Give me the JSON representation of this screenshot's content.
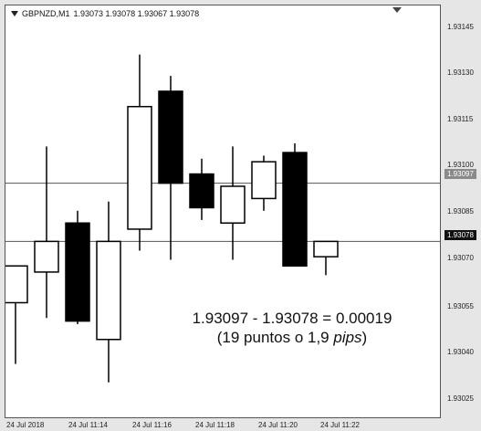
{
  "header": {
    "symbol": "GBPNZD,M1",
    "ohlc": "1.93073 1.93078 1.93067 1.93078",
    "collapse_icon": "triangle-down-icon",
    "shift_icon": "chart-shift-triangle-icon"
  },
  "annotation": {
    "line1": "1.93097 - 1.93078 = 0.00019",
    "line2_prefix": "(19 puntos o 1,9 ",
    "line2_italic": "pips",
    "line2_suffix": ")"
  },
  "price_axis": {
    "labels": [
      "1.93145",
      "1.93130",
      "1.93115",
      "1.93100",
      "1.93085",
      "1.93070",
      "1.93055",
      "1.93040",
      "1.93025"
    ],
    "current_price": "1.93078",
    "reference_price": "1.93097"
  },
  "time_axis": {
    "labels": [
      "24 Jul 2018",
      "24 Jul 11:14",
      "24 Jul 11:16",
      "24 Jul 11:18",
      "24 Jul 11:20",
      "24 Jul 11:22"
    ]
  },
  "colors": {
    "bull_body": "#ffffff",
    "bear_body": "#000000",
    "outline": "#000000",
    "background": "#ffffff",
    "frame": "#e6e6e6",
    "hline": "#555555"
  },
  "chart_data": {
    "type": "candlestick",
    "symbol": "GBPNZD",
    "timeframe": "M1",
    "ylim": [
      1.9302,
      1.93155
    ],
    "horizontal_lines": [
      1.93097,
      1.93078
    ],
    "candles": [
      {
        "open": 1.93058,
        "high": 1.9307,
        "low": 1.93038,
        "close": 1.9307
      },
      {
        "open": 1.93068,
        "high": 1.93109,
        "low": 1.93053,
        "close": 1.93078
      },
      {
        "open": 1.93084,
        "high": 1.93088,
        "low": 1.93051,
        "close": 1.93052
      },
      {
        "open": 1.93046,
        "high": 1.93091,
        "low": 1.93032,
        "close": 1.93078
      },
      {
        "open": 1.93082,
        "high": 1.93139,
        "low": 1.93075,
        "close": 1.93122
      },
      {
        "open": 1.93127,
        "high": 1.93132,
        "low": 1.93072,
        "close": 1.93097
      },
      {
        "open": 1.931,
        "high": 1.93105,
        "low": 1.93085,
        "close": 1.93089
      },
      {
        "open": 1.93084,
        "high": 1.93109,
        "low": 1.93072,
        "close": 1.93096
      },
      {
        "open": 1.93092,
        "high": 1.93106,
        "low": 1.93088,
        "close": 1.93104
      },
      {
        "open": 1.93107,
        "high": 1.9311,
        "low": 1.9307,
        "close": 1.9307
      },
      {
        "open": 1.93073,
        "high": 1.93078,
        "low": 1.93067,
        "close": 1.93078
      }
    ]
  }
}
